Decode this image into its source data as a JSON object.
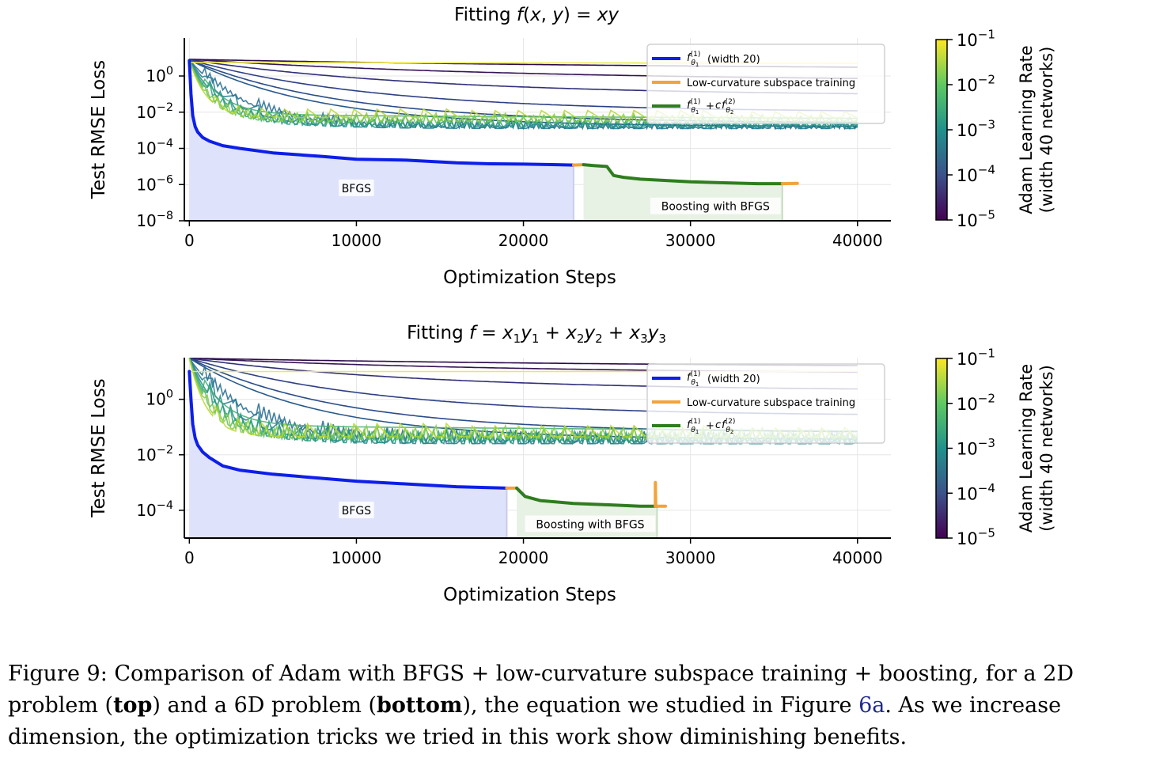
{
  "chart_data": [
    {
      "type": "line",
      "title": "Fitting f(x, y) = xy",
      "xlabel": "Optimization Steps",
      "ylabel": "Test RMSE Loss",
      "xlim": [
        -300,
        42000
      ],
      "ylim": [
        -8,
        2.1
      ],
      "y_scale": "log",
      "xticks": [
        0,
        10000,
        20000,
        30000,
        40000
      ],
      "yticks": [
        {
          "base": "10",
          "exp": "0",
          "value": 0
        },
        {
          "base": "10",
          "exp": "−2",
          "value": -2
        },
        {
          "base": "10",
          "exp": "−4",
          "value": -4
        },
        {
          "base": "10",
          "exp": "−6",
          "value": -6
        },
        {
          "base": "10",
          "exp": "−8",
          "value": -8
        }
      ],
      "grid": true,
      "legend": {
        "placement": "top-right",
        "entries": [
          {
            "label": "(width 20)",
            "color": "#0d1fe8",
            "math": "f_θ1^(1)"
          },
          {
            "label": "Low-curvature subspace training",
            "color": "#f2a33a"
          },
          {
            "label": "",
            "color": "#2f7d1f",
            "math": "f_θ1^(1) + c f_θ2^(2)"
          }
        ]
      },
      "annotations": [
        {
          "text": "BFGS",
          "x": 10000,
          "y": -6.2
        },
        {
          "text": "Boosting with BFGS",
          "x": 31500,
          "y": -7.2
        }
      ],
      "series": [
        {
          "role": "bfgs",
          "color": "#0d1fe8",
          "x": [
            0,
            100,
            200,
            350,
            500,
            800,
            1200,
            2000,
            3000,
            5000,
            8000,
            10000,
            13000,
            16000,
            18000,
            20000,
            22000,
            23000
          ],
          "y": [
            0.85,
            -1.0,
            -2.2,
            -2.8,
            -3.1,
            -3.4,
            -3.6,
            -3.85,
            -4.0,
            -4.25,
            -4.45,
            -4.6,
            -4.65,
            -4.8,
            -4.85,
            -4.87,
            -4.9,
            -4.92
          ]
        },
        {
          "role": "subspace",
          "color": "#f2a33a",
          "x": [
            23000,
            23600
          ],
          "y": [
            -4.92,
            -4.9
          ]
        },
        {
          "role": "boosting",
          "color": "#2f7d1f",
          "x": [
            23600,
            24200,
            25000,
            25400,
            26000,
            27000,
            28000,
            30000,
            32000,
            34000,
            35500
          ],
          "y": [
            -4.9,
            -4.95,
            -5.0,
            -5.5,
            -5.6,
            -5.7,
            -5.75,
            -5.85,
            -5.9,
            -5.95,
            -5.95
          ]
        },
        {
          "role": "subspace",
          "color": "#f2a33a",
          "x": [
            35500,
            36400
          ],
          "y": [
            -5.95,
            -5.93
          ]
        }
      ],
      "shaded_regions": [
        {
          "color": "#dfe2fb",
          "x_from": 0,
          "x_to": 23000
        },
        {
          "color": "#e7f1e4",
          "x_from": 23600,
          "x_to": 35500
        }
      ],
      "adam_runs": [
        {
          "lr_exp": -5.0,
          "color": "#2c0a4b",
          "start": 0.92,
          "end": 0.3,
          "kind": "smooth"
        },
        {
          "lr_exp": -4.8,
          "color": "#351356",
          "start": 0.92,
          "end": -0.3,
          "kind": "smooth"
        },
        {
          "lr_exp": -4.6,
          "color": "#302f7a",
          "start": 0.9,
          "end": -1.1,
          "kind": "smooth"
        },
        {
          "lr_exp": -4.4,
          "color": "#2d3f86",
          "start": 0.9,
          "end": -2.0,
          "kind": "smooth"
        },
        {
          "lr_exp": -4.2,
          "color": "#2a4c8a",
          "start": 0.9,
          "end": -2.6,
          "kind": "smooth"
        },
        {
          "lr_exp": -4.0,
          "color": "#27598c",
          "start": 0.9,
          "end": -2.8,
          "kind": "smooth"
        },
        {
          "lr_exp": -3.7,
          "color": "#23688e",
          "start": 0.9,
          "end": -2.9,
          "kind": "oscillating"
        },
        {
          "lr_exp": -3.4,
          "color": "#1f778e",
          "start": 0.9,
          "end": -2.9,
          "kind": "oscillating"
        },
        {
          "lr_exp": -3.1,
          "color": "#1f8a8a",
          "start": 0.9,
          "end": -2.85,
          "kind": "oscillating"
        },
        {
          "lr_exp": -2.8,
          "color": "#2a9d80",
          "start": 0.9,
          "end": -2.8,
          "kind": "oscillating"
        },
        {
          "lr_exp": -2.5,
          "color": "#3fae71",
          "start": 0.9,
          "end": -2.7,
          "kind": "oscillating"
        },
        {
          "lr_exp": -2.2,
          "color": "#5ebf5c",
          "start": 0.9,
          "end": -2.6,
          "kind": "oscillating"
        },
        {
          "lr_exp": -1.9,
          "color": "#86cb45",
          "start": 0.9,
          "end": -2.5,
          "kind": "oscillating"
        },
        {
          "lr_exp": -1.5,
          "color": "#b6d72e",
          "start": 0.9,
          "end": -2.3,
          "kind": "oscillating"
        },
        {
          "lr_exp": -1.0,
          "color": "#efe84a",
          "start": 0.75,
          "end": 0.7,
          "kind": "flat"
        }
      ]
    },
    {
      "type": "line",
      "title": "Fitting f = x1y1 + x2y2 + x3y3",
      "xlabel": "Optimization Steps",
      "ylabel": "Test RMSE Loss",
      "xlim": [
        -300,
        42000
      ],
      "ylim": [
        -5,
        1.5
      ],
      "y_scale": "log",
      "xticks": [
        0,
        10000,
        20000,
        30000,
        40000
      ],
      "yticks": [
        {
          "base": "10",
          "exp": "0",
          "value": 0
        },
        {
          "base": "10",
          "exp": "−2",
          "value": -2
        },
        {
          "base": "10",
          "exp": "−4",
          "value": -4
        }
      ],
      "grid": true,
      "legend": {
        "placement": "top-right",
        "entries": [
          {
            "label": "(width 20)",
            "color": "#0d1fe8",
            "math": "f_θ1^(1)"
          },
          {
            "label": "Low-curvature subspace training",
            "color": "#f2a33a"
          },
          {
            "label": "",
            "color": "#2f7d1f",
            "math": "f_θ1^(1) + c f_θ2^(2)"
          }
        ]
      },
      "annotations": [
        {
          "text": "BFGS",
          "x": 10000,
          "y": -4.0
        },
        {
          "text": "Boosting with BFGS",
          "x": 24000,
          "y": -4.5
        }
      ],
      "series": [
        {
          "role": "bfgs",
          "color": "#0d1fe8",
          "x": [
            0,
            100,
            200,
            350,
            500,
            800,
            1200,
            2000,
            3000,
            5000,
            8000,
            10000,
            13000,
            16000,
            19000
          ],
          "y": [
            1.0,
            0.0,
            -0.9,
            -1.4,
            -1.65,
            -1.9,
            -2.1,
            -2.4,
            -2.55,
            -2.7,
            -2.85,
            -2.95,
            -3.05,
            -3.15,
            -3.2
          ]
        },
        {
          "role": "subspace",
          "color": "#f2a33a",
          "x": [
            19000,
            19600
          ],
          "y": [
            -3.2,
            -3.2
          ]
        },
        {
          "role": "boosting",
          "color": "#2f7d1f",
          "x": [
            19600,
            20100,
            21000,
            23000,
            25000,
            27000,
            28000
          ],
          "y": [
            -3.2,
            -3.5,
            -3.65,
            -3.75,
            -3.8,
            -3.85,
            -3.85
          ]
        },
        {
          "role": "subspace",
          "color": "#f2a33a",
          "x": [
            27900,
            27900,
            27920,
            28000,
            28500
          ],
          "y": [
            -3.85,
            -3.0,
            -3.85,
            -3.85,
            -3.85
          ]
        }
      ],
      "shaded_regions": [
        {
          "color": "#dfe2fb",
          "x_from": 0,
          "x_to": 19000
        },
        {
          "color": "#e7f1e4",
          "x_from": 19600,
          "x_to": 28000
        }
      ],
      "adam_runs": [
        {
          "lr_exp": -5.0,
          "color": "#2c0a4b",
          "start": 1.48,
          "end": 1.1,
          "kind": "smooth"
        },
        {
          "lr_exp": -4.8,
          "color": "#351356",
          "start": 1.48,
          "end": 0.9,
          "kind": "smooth"
        },
        {
          "lr_exp": -4.6,
          "color": "#302f7a",
          "start": 1.48,
          "end": 0.3,
          "kind": "smooth"
        },
        {
          "lr_exp": -4.4,
          "color": "#2d3f86",
          "start": 1.48,
          "end": -0.6,
          "kind": "smooth"
        },
        {
          "lr_exp": -4.2,
          "color": "#2a4c8a",
          "start": 1.48,
          "end": -1.2,
          "kind": "smooth"
        },
        {
          "lr_exp": -4.0,
          "color": "#27598c",
          "start": 1.48,
          "end": -1.45,
          "kind": "smooth"
        },
        {
          "lr_exp": -3.7,
          "color": "#23688e",
          "start": 1.48,
          "end": -1.55,
          "kind": "oscillating"
        },
        {
          "lr_exp": -3.4,
          "color": "#1f778e",
          "start": 1.48,
          "end": -1.6,
          "kind": "oscillating"
        },
        {
          "lr_exp": -3.1,
          "color": "#1f8a8a",
          "start": 1.48,
          "end": -1.6,
          "kind": "oscillating"
        },
        {
          "lr_exp": -2.8,
          "color": "#2a9d80",
          "start": 1.48,
          "end": -1.55,
          "kind": "oscillating"
        },
        {
          "lr_exp": -2.5,
          "color": "#3fae71",
          "start": 1.48,
          "end": -1.5,
          "kind": "oscillating"
        },
        {
          "lr_exp": -2.2,
          "color": "#5ebf5c",
          "start": 1.48,
          "end": -1.45,
          "kind": "oscillating"
        },
        {
          "lr_exp": -1.9,
          "color": "#86cb45",
          "start": 1.48,
          "end": -1.4,
          "kind": "oscillating"
        },
        {
          "lr_exp": -1.5,
          "color": "#b6d72e",
          "start": 1.48,
          "end": -1.35,
          "kind": "oscillating"
        },
        {
          "lr_exp": -1.0,
          "color": "#efe84a",
          "start": 1.0,
          "end": 1.0,
          "kind": "flat"
        }
      ]
    }
  ],
  "colorbar": {
    "label_line1": "Adam Learning Rate",
    "label_line2": "(width 40 networks)",
    "colormap": "viridis",
    "range": [
      -5,
      -1
    ],
    "ticks": [
      {
        "base": "10",
        "exp": "−1",
        "value": -1
      },
      {
        "base": "10",
        "exp": "−2",
        "value": -2
      },
      {
        "base": "10",
        "exp": "−3",
        "value": -3
      },
      {
        "base": "10",
        "exp": "−4",
        "value": -4
      },
      {
        "base": "10",
        "exp": "−5",
        "value": -5
      }
    ],
    "stops": [
      "#440154",
      "#3b528b",
      "#21918c",
      "#5ec962",
      "#fde725"
    ]
  },
  "caption": {
    "lead": "Figure 9: Comparison of Adam with BFGS + low-curvature subspace training + boosting, for a 2D problem (",
    "top": "top",
    "mid": ") and a 6D problem (",
    "bottom": "bottom",
    "after": "), the equation we studied in Figure ",
    "fig_ref": "6a",
    "tail": ".  As we increase dimension, the optimization tricks we tried in this work show diminishing benefits."
  }
}
